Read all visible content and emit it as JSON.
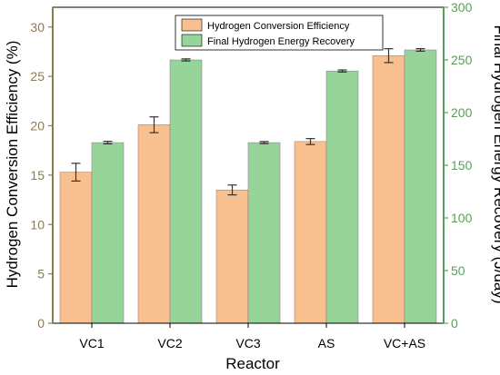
{
  "chart_data": {
    "type": "bar",
    "categories": [
      "VC1",
      "VC2",
      "VC3",
      "AS",
      "VC+AS"
    ],
    "xlabel": "Reactor",
    "ylabel_left": "Hydrogen Conversion Efficiency (%)",
    "ylabel_right": "Final Hydrogen Energy Recovery (J/day)",
    "ylim_left": [
      0,
      32
    ],
    "ylim_right": [
      0,
      300
    ],
    "yticks_left": [
      "0",
      "5",
      "10",
      "15",
      "20",
      "25",
      "30"
    ],
    "yticks_right": [
      "0",
      "50",
      "100",
      "150",
      "200",
      "250",
      "300"
    ],
    "legend_position": "top-center",
    "grid": false,
    "series": [
      {
        "name": "Hydrogen Conversion Efficiency",
        "axis": "left",
        "color": "#F9C08F",
        "values": [
          15.3,
          20.1,
          13.5,
          18.4,
          27.1
        ],
        "errors": [
          0.9,
          0.8,
          0.5,
          0.3,
          0.7
        ]
      },
      {
        "name": "Final Hydrogen Energy Recovery",
        "axis": "right",
        "color": "#96D49A",
        "values": [
          171.5,
          250,
          171.5,
          239.5,
          259.5
        ],
        "errors": [
          1.2,
          1.0,
          1.0,
          1.0,
          1.2
        ]
      }
    ],
    "axis_colors": {
      "left": "#8C7B4F",
      "right": "#5A9E5A"
    }
  }
}
